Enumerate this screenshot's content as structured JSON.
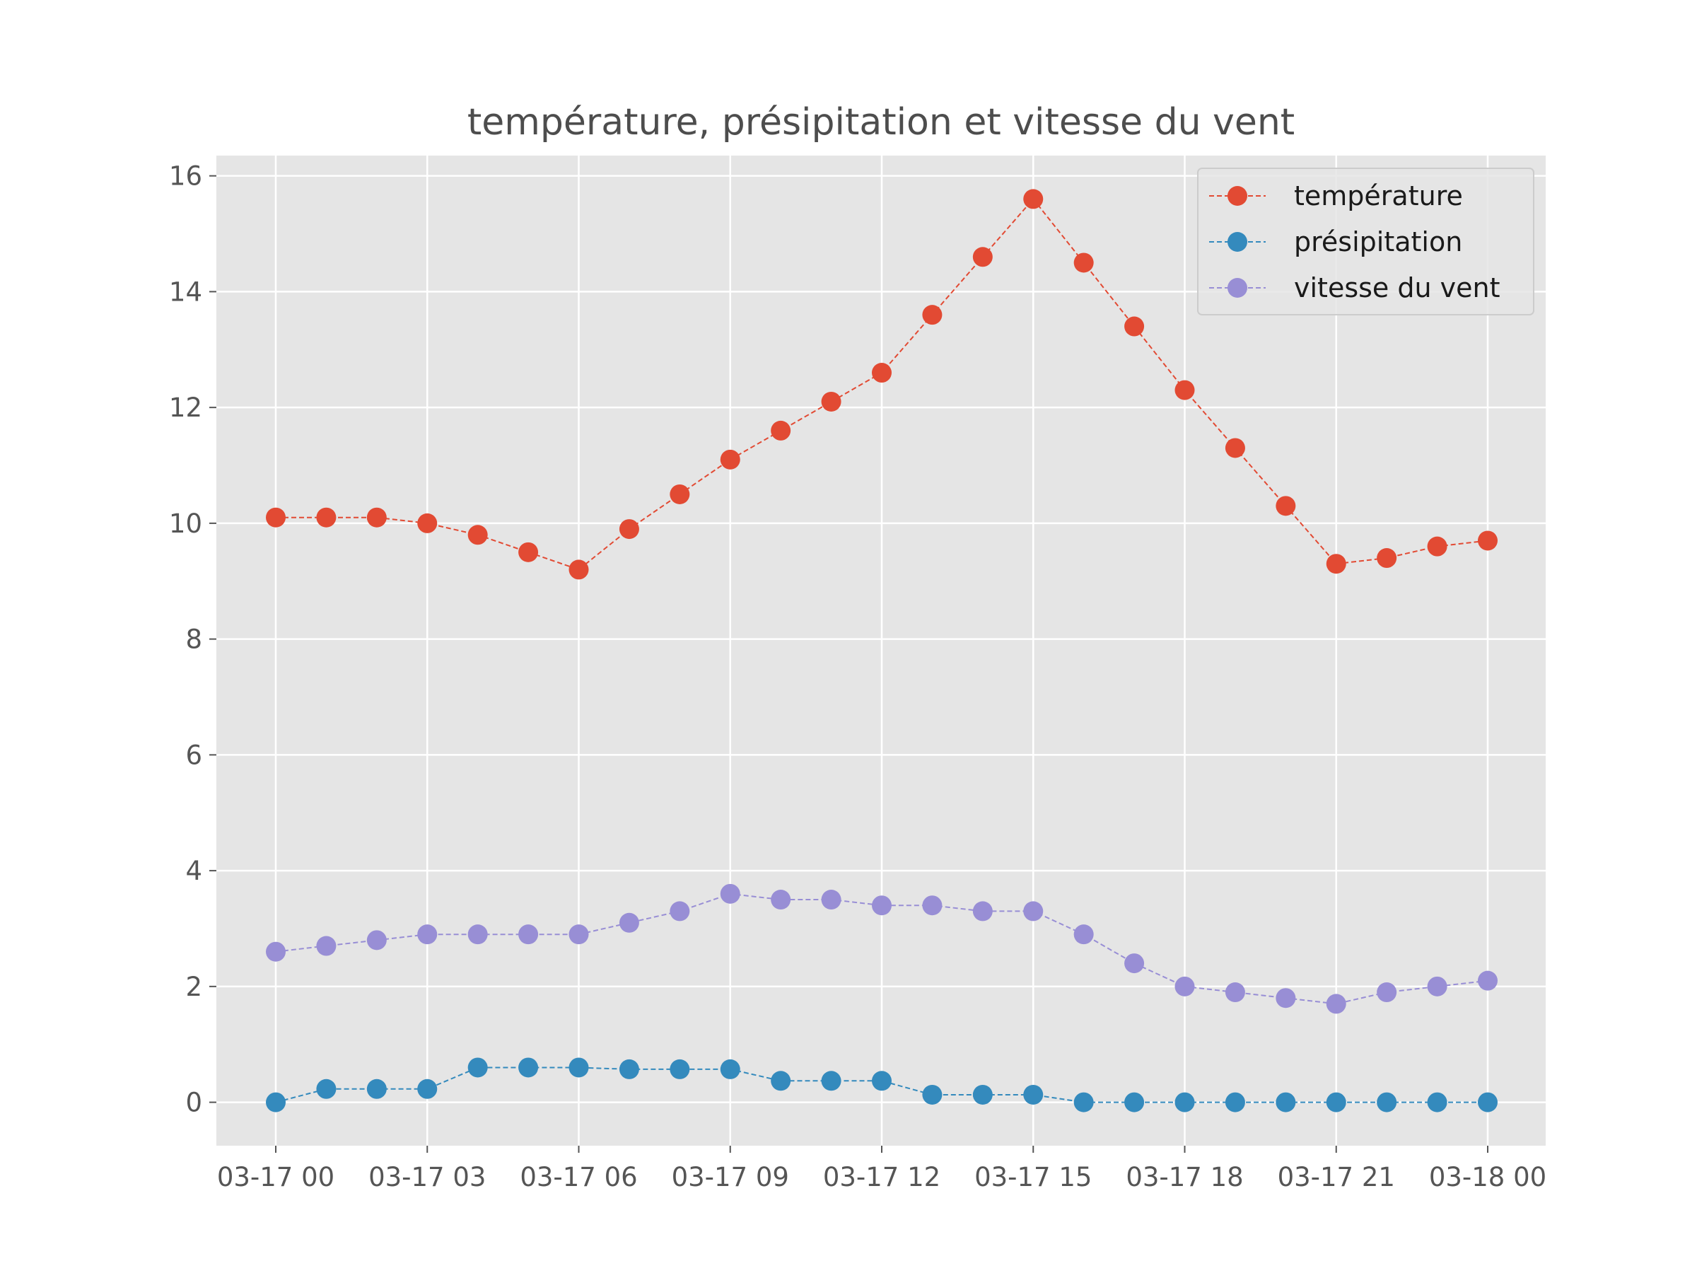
{
  "chart_data": {
    "type": "line",
    "title": "température, présipitation et vitesse du vent",
    "xlabel": "",
    "ylabel": "",
    "x": [
      "2024-03-17 00:00",
      "2024-03-17 01:00",
      "2024-03-17 02:00",
      "2024-03-17 03:00",
      "2024-03-17 04:00",
      "2024-03-17 05:00",
      "2024-03-17 06:00",
      "2024-03-17 07:00",
      "2024-03-17 08:00",
      "2024-03-17 09:00",
      "2024-03-17 10:00",
      "2024-03-17 11:00",
      "2024-03-17 12:00",
      "2024-03-17 13:00",
      "2024-03-17 14:00",
      "2024-03-17 15:00",
      "2024-03-17 16:00",
      "2024-03-17 17:00",
      "2024-03-17 18:00",
      "2024-03-17 19:00",
      "2024-03-17 20:00",
      "2024-03-17 21:00",
      "2024-03-17 22:00",
      "2024-03-17 23:00",
      "2024-03-18 00:00"
    ],
    "x_tick_labels": [
      "03-17 00",
      "03-17 03",
      "03-17 06",
      "03-17 09",
      "03-17 12",
      "03-17 15",
      "03-17 18",
      "03-17 21",
      "03-18 00"
    ],
    "y_tick_labels": [
      "0",
      "2",
      "4",
      "6",
      "8",
      "10",
      "12",
      "14",
      "16"
    ],
    "ylim": [
      -0.75,
      16.35
    ],
    "grid": true,
    "legend_position": "top-right",
    "series": [
      {
        "name": "température",
        "color": "#E24A33",
        "marker": "circle",
        "linestyle": "dashed",
        "values": [
          10.1,
          10.1,
          10.1,
          10.0,
          9.8,
          9.5,
          9.2,
          9.9,
          10.5,
          11.1,
          11.6,
          12.1,
          12.6,
          13.6,
          14.6,
          15.6,
          14.5,
          13.4,
          12.3,
          11.3,
          10.3,
          9.3,
          9.4,
          9.6,
          9.7
        ]
      },
      {
        "name": "présipitation",
        "color": "#348ABD",
        "marker": "circle",
        "linestyle": "dashed",
        "values": [
          0.0,
          0.23,
          0.23,
          0.23,
          0.6,
          0.6,
          0.6,
          0.57,
          0.57,
          0.57,
          0.37,
          0.37,
          0.37,
          0.13,
          0.13,
          0.13,
          0.0,
          0.0,
          0.0,
          0.0,
          0.0,
          0.0,
          0.0,
          0.0,
          0.0
        ]
      },
      {
        "name": "vitesse du vent",
        "color": "#988ED5",
        "marker": "circle",
        "linestyle": "dashed",
        "values": [
          2.6,
          2.7,
          2.8,
          2.9,
          2.9,
          2.9,
          2.9,
          3.1,
          3.3,
          3.6,
          3.5,
          3.5,
          3.4,
          3.4,
          3.3,
          3.3,
          2.9,
          2.4,
          2.0,
          1.9,
          1.8,
          1.7,
          1.9,
          2.0,
          2.1
        ]
      }
    ]
  }
}
